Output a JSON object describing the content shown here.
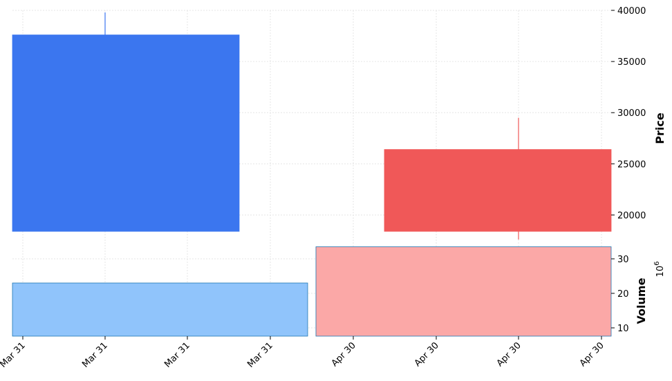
{
  "chart_data": {
    "type": "candlestick",
    "colors": {
      "up": "#3b76ef",
      "down": "#f05858",
      "volume_up": "#90c4fb",
      "volume_down": "#fba8a7",
      "volume_edge": "#1f77b4"
    },
    "x_tick_labels": [
      "Mar 31",
      "Mar 31",
      "Mar 31",
      "Mar 31",
      "Apr 30",
      "Apr 30",
      "Apr 30",
      "Apr 30"
    ],
    "candles": [
      {
        "period": "Mar 31",
        "open": 18400,
        "high": 39800,
        "low": 18400,
        "close": 37600,
        "direction": "up"
      },
      {
        "period": "Apr 30",
        "open": 26400,
        "high": 29500,
        "low": 17600,
        "close": 18400,
        "direction": "down"
      }
    ],
    "volumes": [
      {
        "period": "Mar 31",
        "value": 23,
        "direction": "up"
      },
      {
        "period": "Apr 30",
        "value": 33.5,
        "direction": "down"
      }
    ],
    "price_axis": {
      "label": "Price",
      "ticks": [
        20000,
        25000,
        30000,
        35000,
        40000
      ],
      "tick_labels": [
        "20000",
        "25000",
        "30000",
        "35000",
        "40000"
      ],
      "range": [
        17400,
        40000
      ]
    },
    "volume_axis": {
      "label": "Volume",
      "exponent_label": "10",
      "exponent_power": "6",
      "ticks": [
        10,
        20,
        30
      ],
      "tick_labels": [
        "10",
        "20",
        "30"
      ],
      "range": [
        7.6,
        35
      ]
    },
    "grid": true
  }
}
